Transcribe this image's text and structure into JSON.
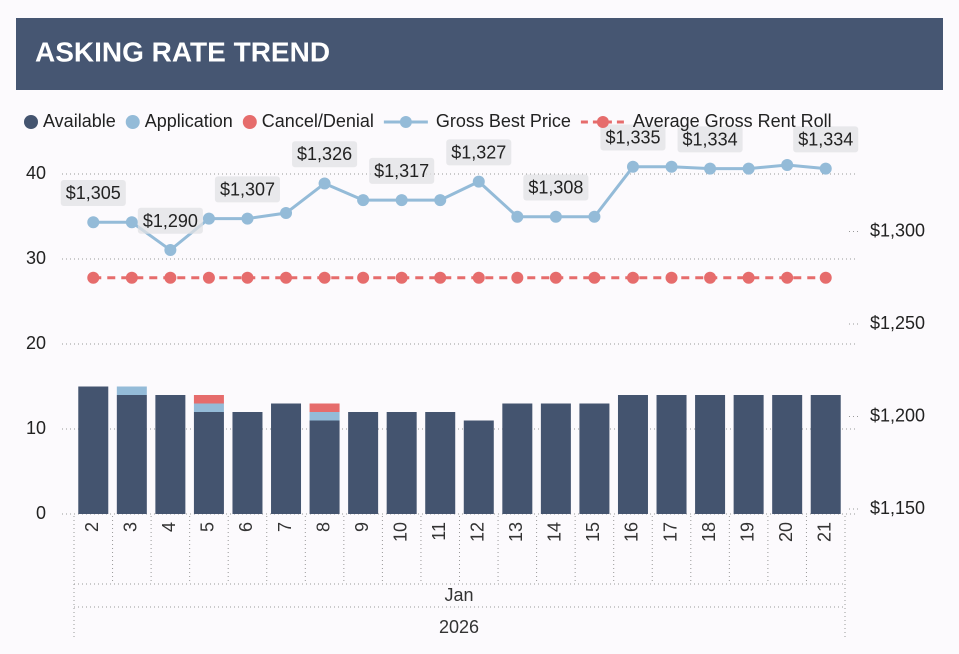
{
  "chart_data": {
    "type": "bar_line",
    "title": "ASKING RATE TREND",
    "categories": [
      "2",
      "3",
      "4",
      "5",
      "6",
      "7",
      "8",
      "9",
      "10",
      "11",
      "12",
      "13",
      "14",
      "15",
      "16",
      "17",
      "18",
      "19",
      "20",
      "21"
    ],
    "x_month": "Jan",
    "x_year": "2026",
    "series": [
      {
        "name": "Available",
        "type": "bar",
        "color": "#44546f",
        "values": [
          15,
          14,
          14,
          12,
          12,
          13,
          11,
          12,
          12,
          12,
          11,
          13,
          13,
          13,
          14,
          14,
          14,
          14,
          14,
          14
        ]
      },
      {
        "name": "Application",
        "type": "bar",
        "color": "#94bbd8",
        "values": [
          0,
          1,
          0,
          1,
          0,
          0,
          1,
          0,
          0,
          0,
          0,
          0,
          0,
          0,
          0,
          0,
          0,
          0,
          0,
          0
        ]
      },
      {
        "name": "Cancel/Denial",
        "type": "bar",
        "color": "#e66c6c",
        "values": [
          0,
          0,
          0,
          1,
          0,
          0,
          1,
          0,
          0,
          0,
          0,
          0,
          0,
          0,
          0,
          0,
          0,
          0,
          0,
          0
        ]
      },
      {
        "name": "Gross Best Price",
        "type": "line",
        "axis": "y2",
        "color": "#94bbd8",
        "dashed": false,
        "values": [
          1305,
          1305,
          1290,
          1307,
          1307,
          1310,
          1326,
          1317,
          1317,
          1317,
          1327,
          1308,
          1308,
          1308,
          1335,
          1335,
          1334,
          1334,
          1336,
          1334
        ],
        "value_labels": [
          "$1,305",
          null,
          "$1,290",
          null,
          "$1,307",
          null,
          "$1,326",
          null,
          "$1,317",
          null,
          "$1,327",
          null,
          "$1,308",
          null,
          "$1,335",
          null,
          "$1,334",
          null,
          null,
          "$1,334"
        ]
      },
      {
        "name": "Average Gross Rent Roll",
        "type": "line",
        "axis": "y2",
        "color": "#e66c6c",
        "dashed": true,
        "values": [
          1275,
          1275,
          1275,
          1275,
          1275,
          1275,
          1275,
          1275,
          1275,
          1275,
          1275,
          1275,
          1275,
          1275,
          1275,
          1275,
          1275,
          1275,
          1275,
          1275
        ]
      }
    ],
    "ylim": [
      0,
      42
    ],
    "yticks": [
      0,
      10,
      20,
      30,
      40
    ],
    "y2lim": [
      1147.3,
      1340.3
    ],
    "y2ticks": [
      {
        "value": 1150,
        "label": "$1,150"
      },
      {
        "value": 1200,
        "label": "$1,200"
      },
      {
        "value": 1250,
        "label": "$1,250"
      },
      {
        "value": 1300,
        "label": "$1,300"
      }
    ],
    "grid": true
  }
}
